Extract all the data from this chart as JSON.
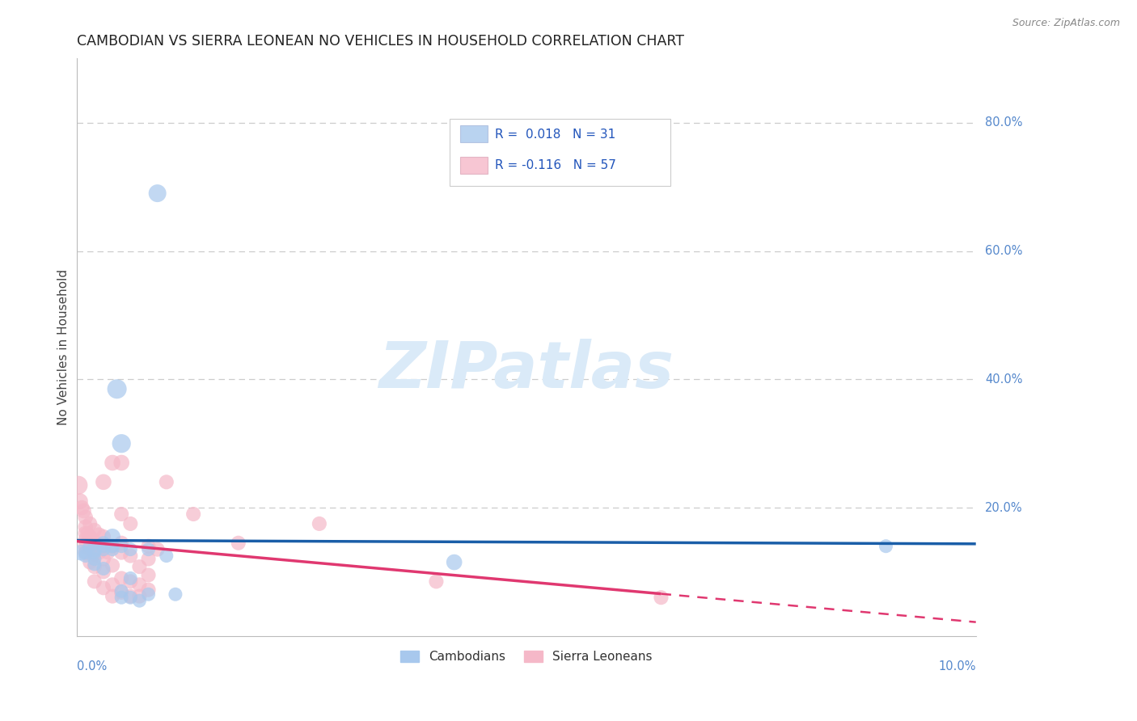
{
  "title": "CAMBODIAN VS SIERRA LEONEAN NO VEHICLES IN HOUSEHOLD CORRELATION CHART",
  "source": "Source: ZipAtlas.com",
  "ylabel": "No Vehicles in Household",
  "xmin": 0.0,
  "xmax": 0.1,
  "ymin": 0.0,
  "ymax": 0.9,
  "yticks": [
    0.2,
    0.4,
    0.6,
    0.8
  ],
  "ytick_labels": [
    "20.0%",
    "40.0%",
    "60.0%",
    "80.0%"
  ],
  "legend_r_camb": "R =  0.018",
  "legend_n_camb": "N = 31",
  "legend_r_sierra": "R = -0.116",
  "legend_n_sierra": "N = 57",
  "cambodian_color": "#a8c8ed",
  "sierra_color": "#f5b8c8",
  "trendline_cambodian_color": "#1a5ea8",
  "trendline_sierra_color": "#e03870",
  "watermark_color": "#daeaf8",
  "cambodian_points": [
    [
      0.0005,
      0.13
    ],
    [
      0.001,
      0.13
    ],
    [
      0.001,
      0.125
    ],
    [
      0.0015,
      0.14
    ],
    [
      0.002,
      0.135
    ],
    [
      0.002,
      0.13
    ],
    [
      0.002,
      0.12
    ],
    [
      0.002,
      0.112
    ],
    [
      0.003,
      0.145
    ],
    [
      0.003,
      0.14
    ],
    [
      0.003,
      0.135
    ],
    [
      0.003,
      0.105
    ],
    [
      0.004,
      0.155
    ],
    [
      0.004,
      0.14
    ],
    [
      0.004,
      0.135
    ],
    [
      0.0045,
      0.385
    ],
    [
      0.005,
      0.14
    ],
    [
      0.005,
      0.3
    ],
    [
      0.005,
      0.07
    ],
    [
      0.005,
      0.06
    ],
    [
      0.006,
      0.135
    ],
    [
      0.006,
      0.09
    ],
    [
      0.006,
      0.06
    ],
    [
      0.007,
      0.055
    ],
    [
      0.008,
      0.135
    ],
    [
      0.008,
      0.065
    ],
    [
      0.009,
      0.69
    ],
    [
      0.01,
      0.125
    ],
    [
      0.011,
      0.065
    ],
    [
      0.042,
      0.115
    ],
    [
      0.09,
      0.14
    ]
  ],
  "cambodian_sizes": [
    200,
    150,
    150,
    150,
    200,
    150,
    150,
    150,
    150,
    150,
    150,
    150,
    200,
    150,
    150,
    300,
    150,
    280,
    150,
    150,
    150,
    150,
    150,
    150,
    150,
    150,
    250,
    150,
    150,
    200,
    150
  ],
  "sierra_points": [
    [
      0.0002,
      0.235
    ],
    [
      0.0004,
      0.21
    ],
    [
      0.0006,
      0.2
    ],
    [
      0.0008,
      0.195
    ],
    [
      0.001,
      0.185
    ],
    [
      0.001,
      0.17
    ],
    [
      0.001,
      0.16
    ],
    [
      0.001,
      0.15
    ],
    [
      0.001,
      0.14
    ],
    [
      0.001,
      0.13
    ],
    [
      0.0012,
      0.16
    ],
    [
      0.0015,
      0.175
    ],
    [
      0.0015,
      0.155
    ],
    [
      0.0015,
      0.135
    ],
    [
      0.0015,
      0.115
    ],
    [
      0.002,
      0.165
    ],
    [
      0.002,
      0.148
    ],
    [
      0.002,
      0.128
    ],
    [
      0.002,
      0.108
    ],
    [
      0.002,
      0.085
    ],
    [
      0.0025,
      0.158
    ],
    [
      0.0025,
      0.13
    ],
    [
      0.003,
      0.24
    ],
    [
      0.003,
      0.155
    ],
    [
      0.003,
      0.12
    ],
    [
      0.003,
      0.1
    ],
    [
      0.003,
      0.075
    ],
    [
      0.0035,
      0.13
    ],
    [
      0.004,
      0.27
    ],
    [
      0.004,
      0.14
    ],
    [
      0.004,
      0.11
    ],
    [
      0.004,
      0.08
    ],
    [
      0.004,
      0.062
    ],
    [
      0.005,
      0.27
    ],
    [
      0.005,
      0.19
    ],
    [
      0.005,
      0.145
    ],
    [
      0.005,
      0.13
    ],
    [
      0.005,
      0.09
    ],
    [
      0.005,
      0.068
    ],
    [
      0.006,
      0.175
    ],
    [
      0.006,
      0.125
    ],
    [
      0.006,
      0.085
    ],
    [
      0.006,
      0.062
    ],
    [
      0.007,
      0.108
    ],
    [
      0.007,
      0.08
    ],
    [
      0.007,
      0.062
    ],
    [
      0.008,
      0.14
    ],
    [
      0.008,
      0.12
    ],
    [
      0.008,
      0.095
    ],
    [
      0.008,
      0.072
    ],
    [
      0.009,
      0.135
    ],
    [
      0.01,
      0.24
    ],
    [
      0.013,
      0.19
    ],
    [
      0.018,
      0.145
    ],
    [
      0.027,
      0.175
    ],
    [
      0.04,
      0.085
    ],
    [
      0.065,
      0.06
    ]
  ],
  "sierra_sizes": [
    280,
    200,
    180,
    180,
    180,
    180,
    180,
    180,
    180,
    180,
    160,
    170,
    170,
    170,
    170,
    170,
    170,
    170,
    170,
    170,
    170,
    170,
    200,
    170,
    170,
    170,
    170,
    160,
    200,
    170,
    170,
    170,
    170,
    200,
    170,
    170,
    170,
    170,
    170,
    170,
    170,
    170,
    170,
    170,
    170,
    170,
    170,
    170,
    170,
    170,
    170,
    170,
    170,
    170,
    170,
    170,
    170
  ]
}
